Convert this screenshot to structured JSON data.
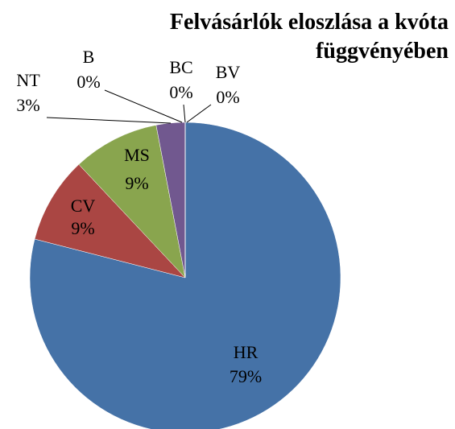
{
  "chart_data": {
    "type": "pie",
    "title": "Felvásárlók eloszlása a kvóta függvényében",
    "categories": [
      "HR",
      "CV",
      "MS",
      "NT",
      "B",
      "BC",
      "BV"
    ],
    "values": [
      79,
      9,
      9,
      3,
      0,
      0,
      0
    ],
    "value_labels": [
      "79%",
      "9%",
      "9%",
      "3%",
      "0%",
      "0%",
      "0%"
    ],
    "colors": [
      "#4572a7",
      "#aa4643",
      "#89a54e",
      "#71588f",
      "#4198af",
      "#db843d",
      "#93a9cf"
    ]
  }
}
